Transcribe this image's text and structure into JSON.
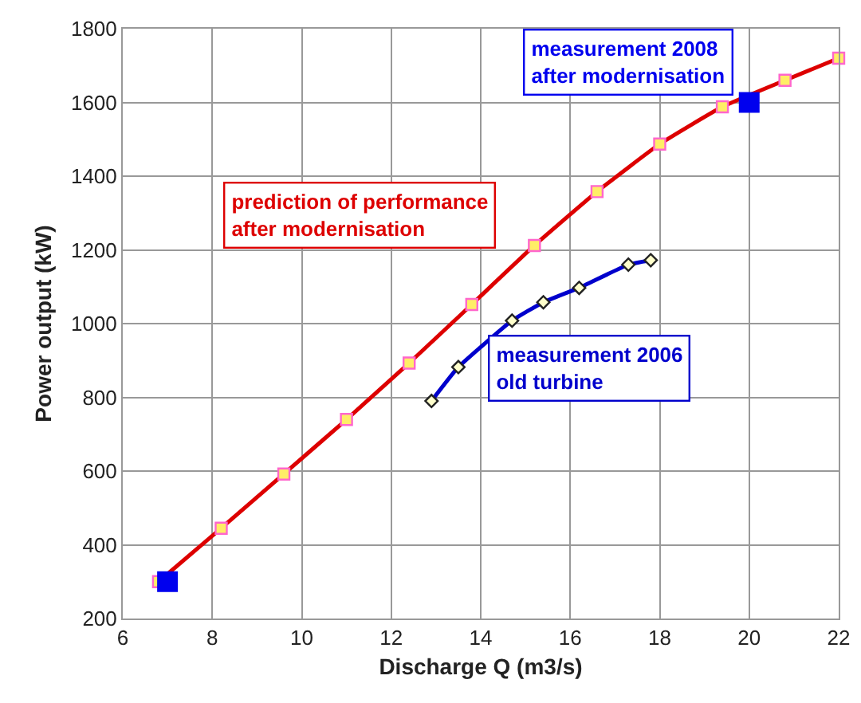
{
  "chart_data": {
    "type": "line",
    "xlabel": "Discharge Q (m3/s)",
    "ylabel": "Power output (kW)",
    "xlim": [
      6,
      22
    ],
    "xticks": [
      6,
      8,
      10,
      12,
      14,
      16,
      18,
      20,
      22
    ],
    "ylim": [
      200,
      1800
    ],
    "yticks": [
      200,
      400,
      600,
      800,
      1000,
      1200,
      1400,
      1600,
      1800
    ],
    "grid": true,
    "legend": false,
    "series": [
      {
        "name": "prediction of performance\nafter modernisation",
        "marker": "square",
        "color": "#dd0000",
        "x": [
          6.8,
          8.2,
          9.6,
          11,
          12.4,
          13.8,
          15.2,
          16.6,
          18,
          19.4,
          20.8,
          22
        ],
        "values": [
          300,
          445,
          592,
          740,
          893,
          1052,
          1212,
          1358,
          1487,
          1588,
          1660,
          1720
        ]
      },
      {
        "name": "measurement 2006\nold turbine",
        "marker": "diamond",
        "color": "#0000cc",
        "x": [
          12.9,
          13.5,
          14.7,
          15.4,
          16.2,
          17.3,
          17.8
        ],
        "values": [
          790,
          882,
          1008,
          1058,
          1097,
          1160,
          1172
        ]
      },
      {
        "name": "measurement 2008\nafter modernisation",
        "type": "scatter",
        "marker": "square",
        "color": "#0000ee",
        "x": [
          7,
          20
        ],
        "values": [
          300,
          1600
        ]
      }
    ]
  }
}
